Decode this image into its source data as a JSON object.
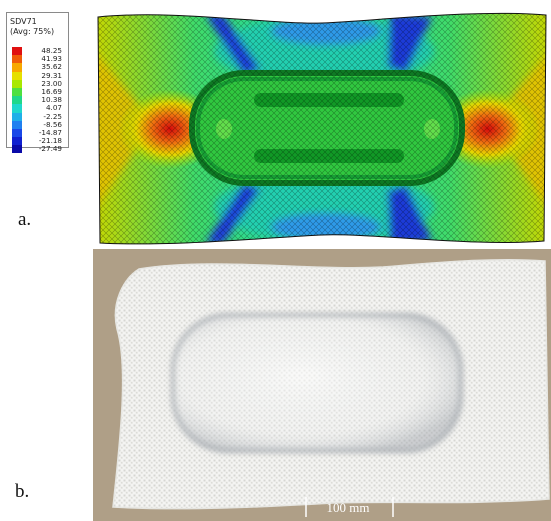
{
  "legend": {
    "title": "SDV71",
    "subtitle": "(Avg: 75%)",
    "entries": [
      {
        "value": "48.25",
        "color": "#e01010"
      },
      {
        "value": "41.93",
        "color": "#f05c08"
      },
      {
        "value": "35.62",
        "color": "#f8a800"
      },
      {
        "value": "29.31",
        "color": "#e6e000"
      },
      {
        "value": "23.00",
        "color": "#a8e800"
      },
      {
        "value": "16.69",
        "color": "#4ee040"
      },
      {
        "value": "10.38",
        "color": "#20d88a"
      },
      {
        "value": "4.07",
        "color": "#20d8cc"
      },
      {
        "value": "-2.25",
        "color": "#20b0e8"
      },
      {
        "value": "-8.56",
        "color": "#2080f0"
      },
      {
        "value": "-14.87",
        "color": "#1a48e8"
      },
      {
        "value": "-21.18",
        "color": "#1020d0"
      },
      {
        "value": "-27.49",
        "color": "#0a0aa8"
      }
    ]
  },
  "panels": {
    "a_label": "a.",
    "b_label": "b."
  },
  "photo": {
    "scale_bar_label": "100 mm"
  }
}
